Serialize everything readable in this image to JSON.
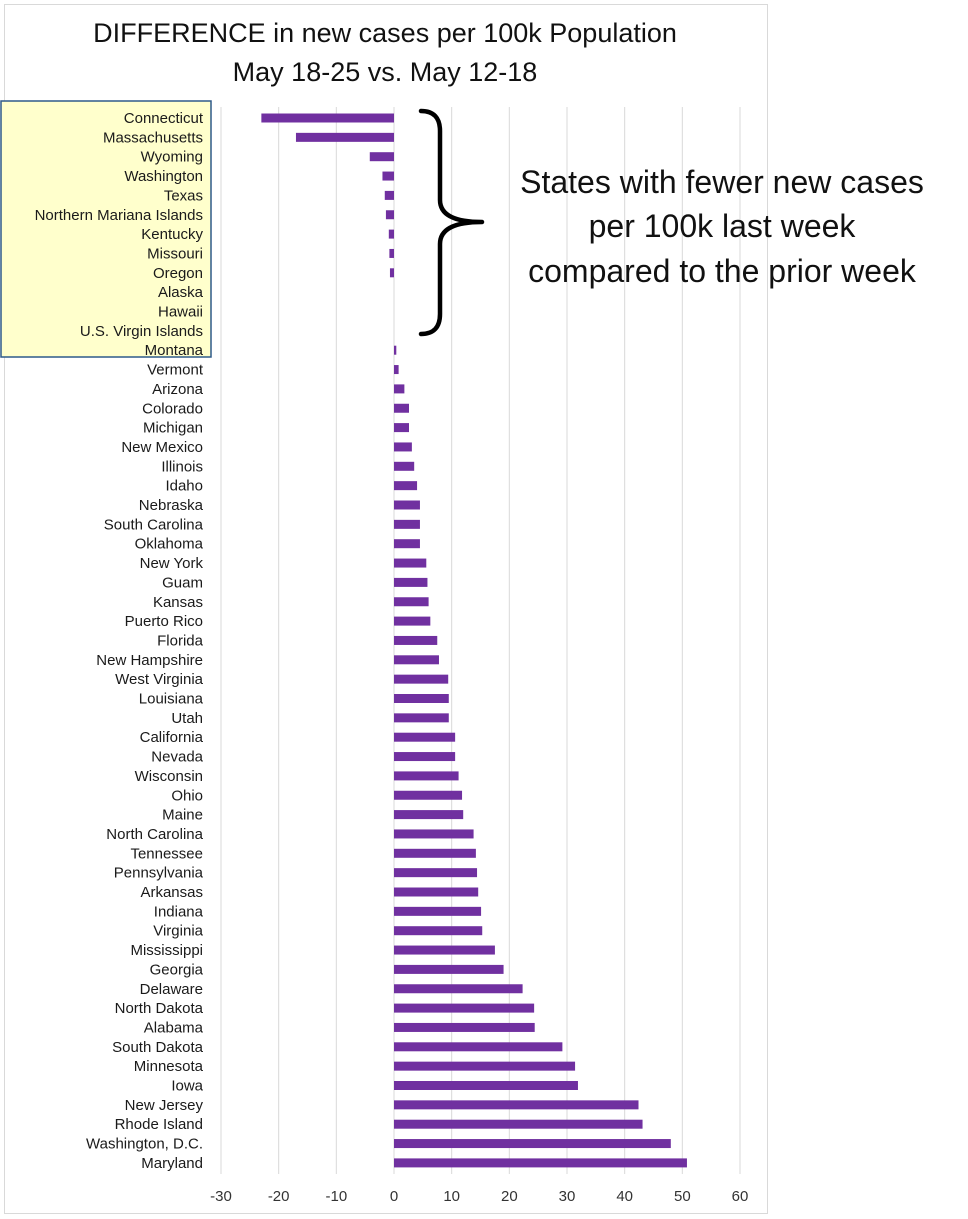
{
  "chart_data": {
    "type": "bar",
    "orientation": "horizontal",
    "title": [
      "DIFFERENCE in new cases per 100k Population",
      "May 18-25 vs. May 12-18"
    ],
    "xlabel": "",
    "ylabel": "",
    "xlim": [
      -30,
      60
    ],
    "xticks": [
      -30,
      -20,
      -10,
      0,
      10,
      20,
      30,
      40,
      50,
      60
    ],
    "grid": "vertical",
    "legend": "none",
    "bar_color": "#7030a0",
    "categories": [
      "Connecticut",
      "Massachusetts",
      "Wyoming",
      "Washington",
      "Texas",
      "Northern Mariana Islands",
      "Kentucky",
      "Missouri",
      "Oregon",
      "Alaska",
      "Hawaii",
      "U.S. Virgin Islands",
      "Montana",
      "Vermont",
      "Arizona",
      "Colorado",
      "Michigan",
      "New Mexico",
      "Illinois",
      "Idaho",
      "Nebraska",
      "South Carolina",
      "Oklahoma",
      "New York",
      "Guam",
      "Kansas",
      "Puerto Rico",
      "Florida",
      "New Hampshire",
      "West Virginia",
      "Louisiana",
      "Utah",
      "California",
      "Nevada",
      "Wisconsin",
      "Ohio",
      "Maine",
      "North Carolina",
      "Tennessee",
      "Pennsylvania",
      "Arkansas",
      "Indiana",
      "Virginia",
      "Mississippi",
      "Georgia",
      "Delaware",
      "North Dakota",
      "Alabama",
      "South Dakota",
      "Minnesota",
      "Iowa",
      "New Jersey",
      "Rhode Island",
      "Washington, D.C.",
      "Maryland"
    ],
    "values": [
      -23,
      -17,
      -4.2,
      -2,
      -1.6,
      -1.4,
      -0.9,
      -0.8,
      -0.7,
      0,
      0,
      0,
      0.4,
      0.8,
      1.8,
      2.6,
      2.6,
      3.1,
      3.5,
      4,
      4.5,
      4.5,
      4.5,
      5.6,
      5.8,
      6,
      6.3,
      7.5,
      7.8,
      9.4,
      9.5,
      9.5,
      10.6,
      10.6,
      11.2,
      11.8,
      12,
      13.8,
      14.2,
      14.4,
      14.6,
      15.1,
      15.3,
      17.5,
      19,
      22.3,
      24.3,
      24.4,
      29.2,
      31.4,
      31.9,
      42.4,
      43.1,
      48,
      50.8
    ],
    "highlighted_categories": [
      "Connecticut",
      "Massachusetts",
      "Wyoming",
      "Washington",
      "Texas",
      "Northern Mariana Islands",
      "Kentucky",
      "Missouri",
      "Oregon",
      "Alaska",
      "Hawaii",
      "U.S. Virgin Islands",
      "Montana"
    ],
    "highlight_fill": "#ffffcc",
    "highlight_border": "#2e5a8a",
    "annotation": {
      "lines": [
        "States with fewer new cases",
        "per 100k last week",
        "compared to the prior week"
      ],
      "bracket": "right curly brace"
    }
  }
}
